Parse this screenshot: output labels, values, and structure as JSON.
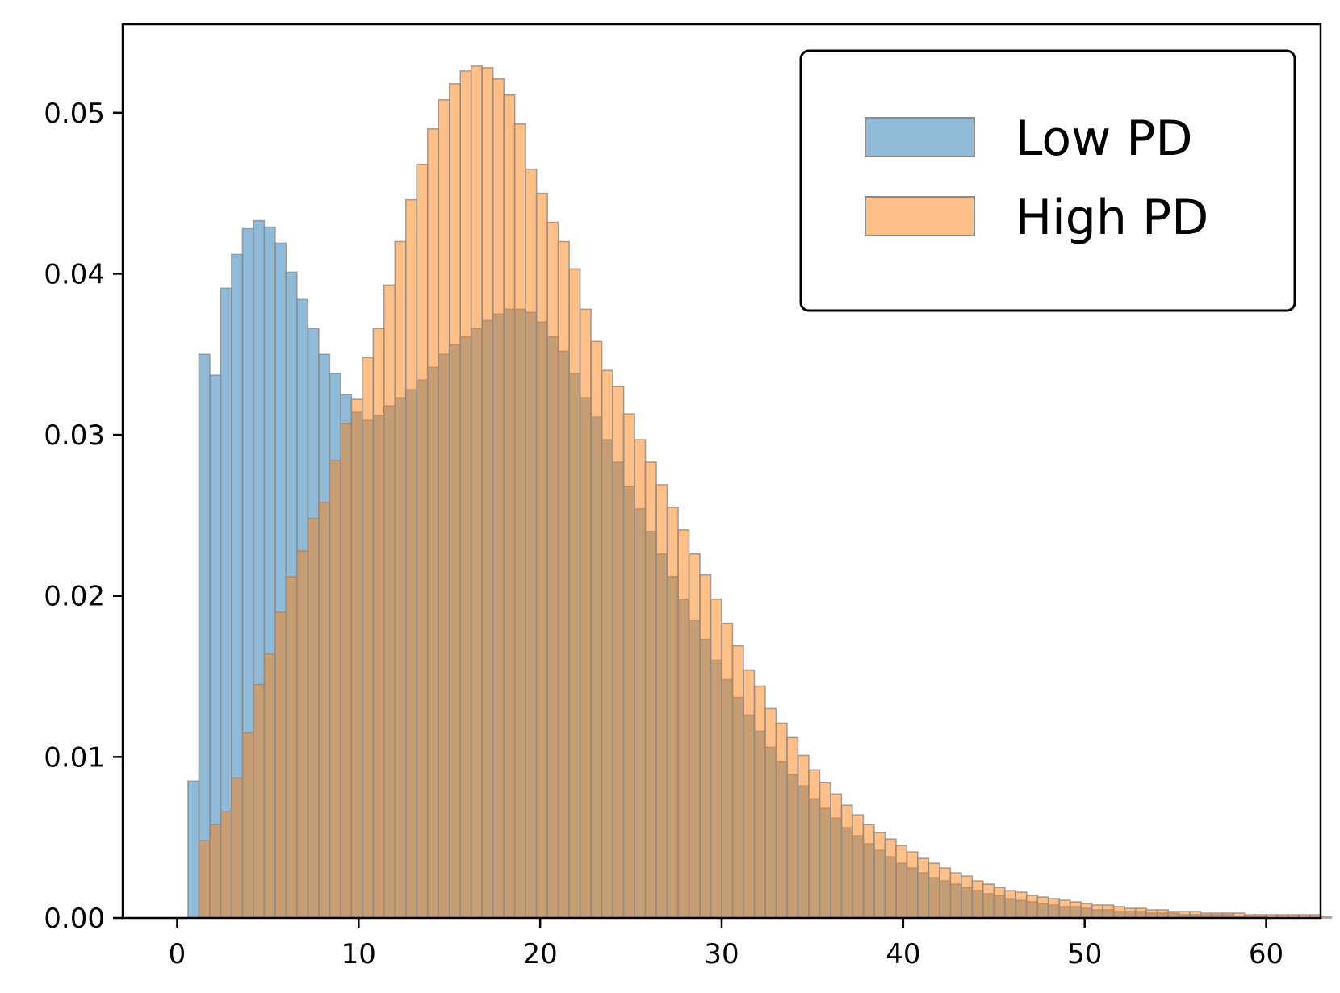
{
  "chart_data": {
    "type": "bar",
    "subtype": "histogram",
    "title": "",
    "xlabel": "",
    "ylabel": "",
    "xlim": [
      -3,
      63
    ],
    "ylim": [
      0,
      0.0555
    ],
    "x_ticks": [
      0,
      10,
      20,
      30,
      40,
      50,
      60
    ],
    "x_tick_labels": [
      "0",
      "10",
      "20",
      "30",
      "40",
      "50",
      "60"
    ],
    "y_ticks": [
      0,
      0.01,
      0.02,
      0.03,
      0.04,
      0.05
    ],
    "y_tick_labels": [
      "0.00",
      "0.01",
      "0.02",
      "0.03",
      "0.04",
      "0.05"
    ],
    "grid": false,
    "legend": {
      "position": "top-right"
    },
    "bin_start": 0.6,
    "bin_width": 0.6,
    "series": [
      {
        "name": "Low PD",
        "color": "#1f77b4",
        "values": [
          0.0085,
          0.035,
          0.0337,
          0.0391,
          0.0412,
          0.0428,
          0.0433,
          0.0429,
          0.0419,
          0.0401,
          0.0384,
          0.0366,
          0.035,
          0.0338,
          0.0325,
          0.0314,
          0.0309,
          0.0312,
          0.0318,
          0.0323,
          0.0328,
          0.0334,
          0.0342,
          0.035,
          0.0356,
          0.0361,
          0.0366,
          0.0371,
          0.0375,
          0.0378,
          0.0378,
          0.0376,
          0.037,
          0.0361,
          0.0352,
          0.0338,
          0.0323,
          0.0311,
          0.0297,
          0.0283,
          0.0268,
          0.0254,
          0.024,
          0.0226,
          0.0212,
          0.0198,
          0.0185,
          0.0173,
          0.016,
          0.0148,
          0.0137,
          0.0126,
          0.0116,
          0.0106,
          0.0097,
          0.0089,
          0.0082,
          0.0074,
          0.0068,
          0.0062,
          0.0056,
          0.0051,
          0.0046,
          0.0042,
          0.0038,
          0.0034,
          0.0031,
          0.0028,
          0.0025,
          0.0023,
          0.0021,
          0.0019,
          0.0017,
          0.0015,
          0.0014,
          0.0012,
          0.0011,
          0.001,
          0.0009,
          0.0008,
          0.0007,
          0.0007,
          0.0006,
          0.0005,
          0.0005,
          0.0004,
          0.0004,
          0.0004,
          0.0003,
          0.0003,
          0.0003,
          0.0002,
          0.0002,
          0.0002,
          0.0002,
          0.0002,
          0.0001,
          0.0001,
          0.0001
        ]
      },
      {
        "name": "High PD",
        "color": "#ff7f0e",
        "values": [
          0.0,
          0.0048,
          0.0058,
          0.0066,
          0.0087,
          0.0115,
          0.0145,
          0.0164,
          0.019,
          0.0212,
          0.0228,
          0.0248,
          0.0258,
          0.0284,
          0.0307,
          0.0322,
          0.0348,
          0.0366,
          0.0393,
          0.042,
          0.0446,
          0.0468,
          0.049,
          0.0508,
          0.0518,
          0.0526,
          0.0529,
          0.0528,
          0.0521,
          0.0511,
          0.0493,
          0.0465,
          0.045,
          0.0432,
          0.042,
          0.0403,
          0.0378,
          0.0358,
          0.034,
          0.033,
          0.0313,
          0.0297,
          0.0283,
          0.0269,
          0.0255,
          0.0241,
          0.0226,
          0.0213,
          0.0198,
          0.0183,
          0.0169,
          0.0154,
          0.0144,
          0.013,
          0.0121,
          0.0112,
          0.0101,
          0.0092,
          0.0084,
          0.0077,
          0.007,
          0.0064,
          0.0058,
          0.0053,
          0.0049,
          0.0045,
          0.0041,
          0.0037,
          0.0034,
          0.0031,
          0.0028,
          0.0026,
          0.0023,
          0.0021,
          0.0019,
          0.0017,
          0.0016,
          0.0014,
          0.0013,
          0.0012,
          0.0011,
          0.001,
          0.0009,
          0.0008,
          0.0008,
          0.0007,
          0.0006,
          0.0006,
          0.0005,
          0.0005,
          0.0004,
          0.0004,
          0.0004,
          0.0003,
          0.0003,
          0.0003,
          0.0003,
          0.0002,
          0.0002,
          0.0002,
          0.0002,
          0.0002,
          0.0002,
          0.0002,
          0.0001
        ]
      }
    ]
  }
}
